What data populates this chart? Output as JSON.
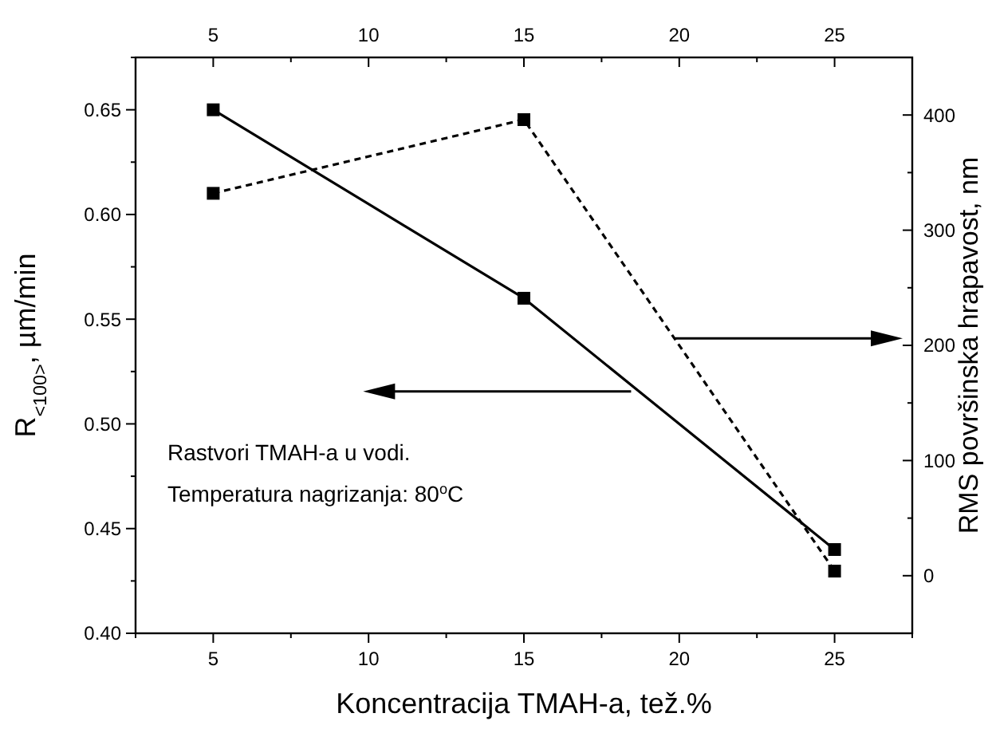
{
  "chart_data": {
    "type": "line",
    "xlabel": "Koncentracija TMAH-a, tež.%",
    "ylabel": "R$_{<100>}$, µm/min",
    "y2label": "RMS površinska hrapavost, nm",
    "x": [
      5,
      15,
      25
    ],
    "series": [
      {
        "color": "#000000",
        "values": [
          0.65,
          0.56,
          0.44
        ],
        "line_style": "solid",
        "marker": "square"
      },
      {
        "color": "#000000",
        "values": [
          332,
          396,
          4
        ],
        "line_style": "dashed",
        "marker": "square",
        "axis": "y2"
      }
    ],
    "xlim": [
      2.5,
      27.5
    ],
    "xticks": [
      5,
      10,
      15,
      20,
      25
    ],
    "x2lim": [
      2.5,
      27.5
    ],
    "x2ticks": [
      5,
      10,
      15,
      20,
      25
    ],
    "ylim": [
      0.4,
      0.675
    ],
    "yticks": [
      {
        "value": 0.4,
        "label": "0.40"
      },
      {
        "value": 0.45,
        "label": "0.45"
      },
      {
        "value": 0.5,
        "label": "0.50"
      },
      {
        "value": 0.55,
        "label": "0.55"
      },
      {
        "value": 0.6,
        "label": "0.60"
      },
      {
        "value": 0.65,
        "label": "0.65"
      }
    ],
    "y2lim": [
      -50,
      450
    ],
    "y2ticks": [
      0,
      100,
      200,
      300,
      400
    ],
    "annotations": [
      "Rastvori TMAH-a u vodi.",
      "Temperatura nagrizanja: 80$^{o}$C"
    ]
  }
}
